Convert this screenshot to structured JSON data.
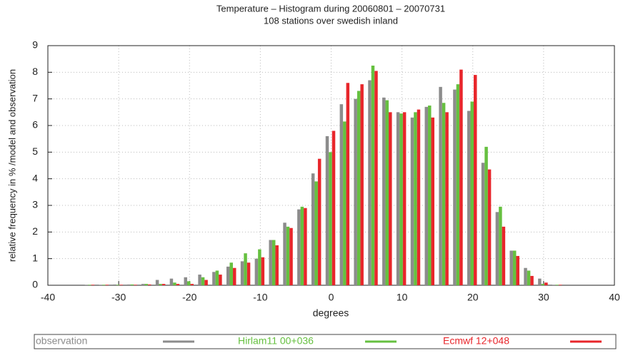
{
  "chart_data": {
    "type": "bar",
    "title": "Temperature – Histogram during 20060801 – 20070731",
    "subtitle": "108 stations over swedish inland",
    "x_label": "degrees",
    "y_label": "relative frequency in % /model and observation",
    "x": [
      -34,
      -32,
      -30,
      -28,
      -26,
      -24,
      -22,
      -20,
      -18,
      -16,
      -14,
      -12,
      -10,
      -8,
      -6,
      -4,
      -2,
      0,
      2,
      4,
      6,
      8,
      10,
      12,
      14,
      16,
      18,
      20,
      22,
      24,
      26,
      28,
      30,
      32
    ],
    "series": [
      {
        "name": "observation",
        "color": "#8c8c8c",
        "values": [
          0.02,
          0.02,
          0.03,
          0.03,
          0.05,
          0.2,
          0.25,
          0.3,
          0.4,
          0.5,
          0.7,
          0.9,
          1.0,
          1.7,
          2.35,
          2.85,
          4.2,
          5.6,
          6.8,
          7.0,
          7.7,
          7.05,
          6.5,
          6.3,
          6.7,
          7.45,
          7.35,
          6.55,
          4.6,
          2.75,
          1.3,
          0.65,
          0.25,
          0.02
        ]
      },
      {
        "name": "Hirlam11 00+036",
        "color": "#66c040",
        "values": [
          0.02,
          0.02,
          0.02,
          0.03,
          0.05,
          0.05,
          0.1,
          0.15,
          0.3,
          0.55,
          0.85,
          1.2,
          1.35,
          1.7,
          2.2,
          2.95,
          3.9,
          5.0,
          6.15,
          7.3,
          8.25,
          6.95,
          6.45,
          6.5,
          6.75,
          6.85,
          7.55,
          6.9,
          5.2,
          2.95,
          1.3,
          0.55,
          0.05,
          0.02
        ]
      },
      {
        "name": "Ecmwf 12+048",
        "color": "#e8262b",
        "values": [
          0.02,
          0.02,
          0.02,
          0.02,
          0.03,
          0.05,
          0.05,
          0.05,
          0.2,
          0.4,
          0.65,
          0.85,
          1.05,
          1.5,
          2.15,
          2.9,
          4.75,
          5.8,
          7.6,
          7.55,
          8.05,
          6.5,
          6.5,
          6.6,
          6.3,
          6.5,
          8.1,
          7.9,
          4.35,
          2.2,
          1.1,
          0.35,
          0.1,
          0.02
        ]
      }
    ],
    "xlim": [
      -40,
      40
    ],
    "xticks": [
      -40,
      -30,
      -20,
      -10,
      0,
      10,
      20,
      30,
      40
    ],
    "ylim": [
      0,
      9
    ],
    "yticks": [
      0,
      1,
      2,
      3,
      4,
      5,
      6,
      7,
      8,
      9
    ],
    "grid": true,
    "legend": "bottom"
  }
}
